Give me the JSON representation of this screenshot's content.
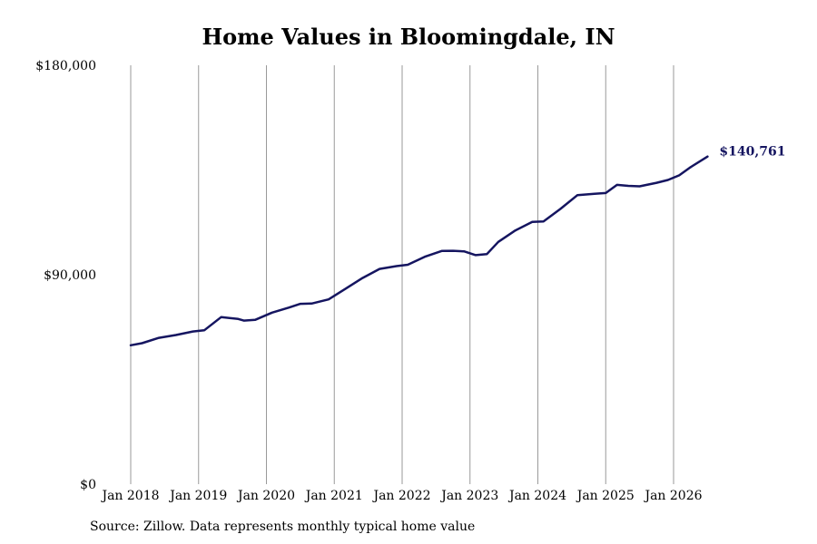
{
  "title": "Home Values in Bloomingdale, IN",
  "source": "Source: Zillow. Data represents monthly typical home value",
  "colors": {
    "line": "#151560",
    "grid": "#9a9a9a",
    "label": "#151560"
  },
  "chart_data": {
    "type": "line",
    "title": "Home Values in Bloomingdale, IN",
    "xlabel": "",
    "ylabel": "",
    "ylim": [
      0,
      180000
    ],
    "xlim": [
      "2018-01",
      "2026-07"
    ],
    "grid": "vertical",
    "x_ticks": [
      "Jan 2018",
      "Jan 2019",
      "Jan 2020",
      "Jan 2021",
      "Jan 2022",
      "Jan 2023",
      "Jan 2024",
      "Jan 2025",
      "Jan 2026"
    ],
    "y_ticks": [
      {
        "value": 0,
        "label": "$0"
      },
      {
        "value": 90000,
        "label": "$90,000"
      },
      {
        "value": 180000,
        "label": "$180,000"
      }
    ],
    "end_label": "$140,761",
    "series": [
      {
        "points": [
          [
            "2018-01",
            59700
          ],
          [
            "2018-03",
            60600
          ],
          [
            "2018-06",
            62900
          ],
          [
            "2018-09",
            64100
          ],
          [
            "2018-12",
            65600
          ],
          [
            "2019-02",
            66100
          ],
          [
            "2019-05",
            71800
          ],
          [
            "2019-08",
            71000
          ],
          [
            "2019-09",
            70300
          ],
          [
            "2019-11",
            70600
          ],
          [
            "2020-02",
            73700
          ],
          [
            "2020-05",
            75900
          ],
          [
            "2020-07",
            77500
          ],
          [
            "2020-09",
            77600
          ],
          [
            "2020-12",
            79400
          ],
          [
            "2021-03",
            84000
          ],
          [
            "2021-06",
            88600
          ],
          [
            "2021-09",
            92500
          ],
          [
            "2021-12",
            93700
          ],
          [
            "2022-02",
            94300
          ],
          [
            "2022-05",
            97700
          ],
          [
            "2022-08",
            100200
          ],
          [
            "2022-10",
            100300
          ],
          [
            "2022-12",
            100000
          ],
          [
            "2023-02",
            98400
          ],
          [
            "2023-04",
            98900
          ],
          [
            "2023-06",
            104100
          ],
          [
            "2023-09",
            109000
          ],
          [
            "2023-12",
            112700
          ],
          [
            "2024-02",
            112900
          ],
          [
            "2024-05",
            118300
          ],
          [
            "2024-08",
            124200
          ],
          [
            "2024-11",
            124800
          ],
          [
            "2025-01",
            125100
          ],
          [
            "2025-03",
            128600
          ],
          [
            "2025-05",
            128200
          ],
          [
            "2025-07",
            128000
          ],
          [
            "2025-10",
            129500
          ],
          [
            "2025-12",
            130700
          ],
          [
            "2026-02",
            132700
          ],
          [
            "2026-04",
            136200
          ],
          [
            "2026-07",
            140761
          ]
        ]
      }
    ]
  }
}
